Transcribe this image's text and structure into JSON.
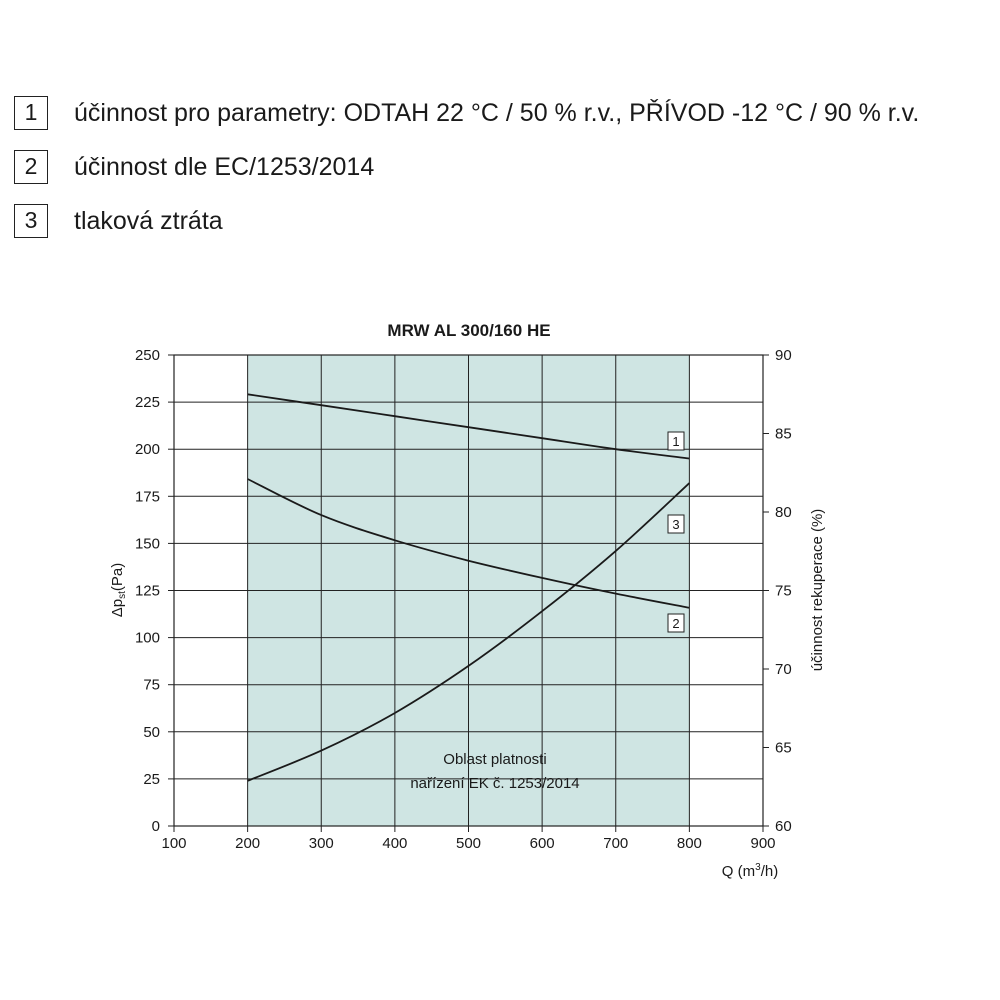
{
  "legend": {
    "items": [
      {
        "num": "1",
        "text": "účinnost pro parametry: ODTAH 22 °C / 50 % r.v., PŘÍVOD -12 °C / 90 % r.v."
      },
      {
        "num": "2",
        "text": "účinnost dle EC/1253/2014"
      },
      {
        "num": "3",
        "text": "tlaková ztráta"
      }
    ]
  },
  "chart_data": {
    "type": "line",
    "title": "MRW AL 300/160 HE",
    "xlabel_main": "Q (m",
    "xlabel_sup": "3",
    "xlabel_end": "/h)",
    "ylabel_left_main": "Δp",
    "ylabel_left_sub": "st",
    "ylabel_left_end": "(Pa)",
    "ylabel_right": "účinnost rekuperace (%)",
    "xlim": [
      100,
      900
    ],
    "ylim_left": [
      0,
      250
    ],
    "ylim_right": [
      60,
      90
    ],
    "x_ticks": [
      "100",
      "200",
      "300",
      "400",
      "500",
      "600",
      "700",
      "800",
      "900"
    ],
    "y_left_ticks": [
      "0",
      "25",
      "50",
      "75",
      "100",
      "125",
      "150",
      "175",
      "200",
      "225",
      "250"
    ],
    "y_right_ticks": [
      "60",
      "65",
      "70",
      "75",
      "80",
      "85",
      "90"
    ],
    "grid": true,
    "shaded_region": {
      "x": [
        200,
        800
      ],
      "label_line1": "Oblast platnosti",
      "label_line2": "nařízení EK č. 1253/2014",
      "color": "#cfe5e3"
    },
    "series": [
      {
        "name": "1",
        "axis": "right",
        "x": [
          200,
          300,
          400,
          500,
          600,
          700,
          800
        ],
        "y": [
          87.5,
          86.8,
          86.1,
          85.4,
          84.7,
          84.0,
          83.4
        ]
      },
      {
        "name": "2",
        "axis": "right",
        "x": [
          200,
          300,
          400,
          500,
          600,
          700,
          800
        ],
        "y": [
          82.1,
          79.8,
          78.2,
          76.9,
          75.8,
          74.8,
          73.9
        ]
      },
      {
        "name": "3",
        "axis": "left",
        "x": [
          200,
          300,
          400,
          500,
          600,
          700,
          800
        ],
        "y": [
          24,
          40,
          60,
          85,
          114,
          146,
          182
        ]
      }
    ]
  }
}
